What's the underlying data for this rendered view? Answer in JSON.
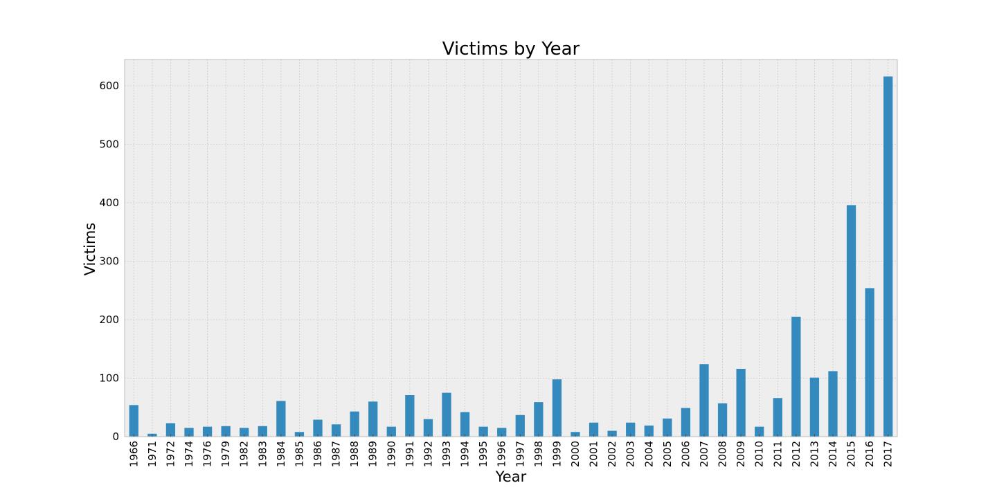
{
  "chart_data": {
    "type": "bar",
    "title": "Victims by Year",
    "xlabel": "Year",
    "ylabel": "Victims",
    "ylim": [
      0,
      645
    ],
    "yticks": [
      0,
      100,
      200,
      300,
      400,
      500,
      600
    ],
    "grid": true,
    "colors": {
      "bar": "#348ABD",
      "plot_bg": "#EEEEEE",
      "grid": "#CBCBCB",
      "frame": "#BCBCBC"
    },
    "categories": [
      "1966",
      "1971",
      "1972",
      "1974",
      "1976",
      "1979",
      "1982",
      "1983",
      "1984",
      "1985",
      "1986",
      "1987",
      "1988",
      "1989",
      "1990",
      "1991",
      "1992",
      "1993",
      "1994",
      "1995",
      "1996",
      "1997",
      "1998",
      "1999",
      "2000",
      "2001",
      "2002",
      "2003",
      "2004",
      "2005",
      "2006",
      "2007",
      "2008",
      "2009",
      "2010",
      "2011",
      "2012",
      "2013",
      "2014",
      "2015",
      "2016",
      "2017"
    ],
    "values": [
      54,
      5,
      23,
      15,
      17,
      18,
      15,
      18,
      61,
      8,
      29,
      21,
      43,
      60,
      17,
      71,
      30,
      75,
      42,
      17,
      15,
      37,
      59,
      98,
      8,
      24,
      10,
      24,
      19,
      31,
      49,
      124,
      57,
      116,
      17,
      66,
      205,
      101,
      112,
      396,
      254,
      616
    ]
  }
}
